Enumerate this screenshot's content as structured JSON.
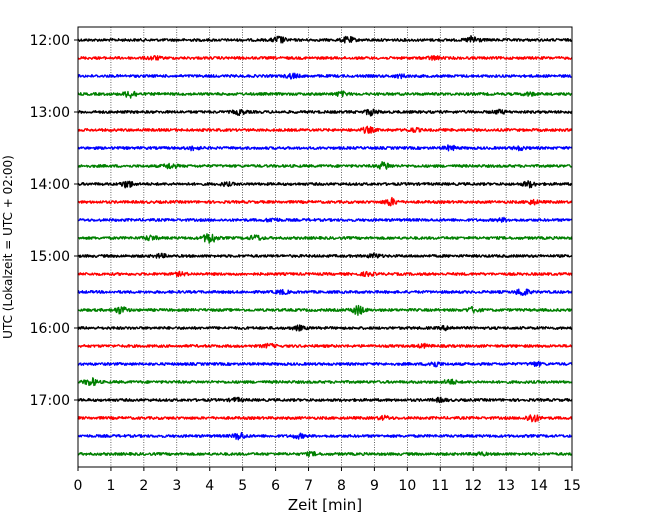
{
  "chart_data": {
    "type": "line",
    "title": "",
    "xlabel": "Zeit  [min]",
    "ylabel": "UTC (Lokalzeit = UTC + 02:00)",
    "xlim": [
      0,
      15
    ],
    "xticks": [
      0,
      1,
      2,
      3,
      4,
      5,
      6,
      7,
      8,
      9,
      10,
      11,
      12,
      13,
      14,
      15
    ],
    "yticks": [
      "12:00",
      "13:00",
      "14:00",
      "15:00",
      "16:00",
      "17:00"
    ],
    "grid": "vertical dotted lines at each minute",
    "trace_interval_minutes": 15,
    "color_cycle": [
      "#000000",
      "#ff0000",
      "#0000ff",
      "#008000"
    ],
    "series": [
      {
        "start": "12:00",
        "color": "#000000",
        "events": [
          [
            6.1,
            1.2
          ],
          [
            8.2,
            1.0
          ],
          [
            12.0,
            1.4
          ]
        ]
      },
      {
        "start": "12:15",
        "color": "#ff0000",
        "events": [
          [
            2.3,
            0.6
          ],
          [
            10.8,
            0.6
          ]
        ]
      },
      {
        "start": "12:30",
        "color": "#0000ff",
        "events": [
          [
            6.5,
            0.8
          ],
          [
            9.8,
            0.5
          ]
        ]
      },
      {
        "start": "12:45",
        "color": "#008000",
        "events": [
          [
            1.6,
            1.3
          ],
          [
            8.0,
            0.7
          ],
          [
            13.7,
            0.5
          ]
        ]
      },
      {
        "start": "13:00",
        "color": "#000000",
        "events": [
          [
            4.9,
            0.8
          ],
          [
            8.9,
            1.0
          ],
          [
            12.8,
            0.6
          ]
        ]
      },
      {
        "start": "13:15",
        "color": "#ff0000",
        "events": [
          [
            8.8,
            1.0
          ],
          [
            10.2,
            0.6
          ]
        ]
      },
      {
        "start": "13:30",
        "color": "#0000ff",
        "events": [
          [
            3.5,
            0.6
          ],
          [
            11.3,
            0.8
          ],
          [
            13.4,
            0.6
          ]
        ]
      },
      {
        "start": "13:45",
        "color": "#008000",
        "events": [
          [
            2.8,
            0.9
          ],
          [
            9.3,
            1.3
          ]
        ]
      },
      {
        "start": "14:00",
        "color": "#000000",
        "events": [
          [
            1.5,
            1.2
          ],
          [
            4.5,
            0.5
          ],
          [
            13.7,
            1.0
          ]
        ]
      },
      {
        "start": "14:15",
        "color": "#ff0000",
        "events": [
          [
            9.5,
            1.3
          ],
          [
            13.8,
            0.7
          ]
        ]
      },
      {
        "start": "14:30",
        "color": "#0000ff",
        "events": [
          [
            5.9,
            0.6
          ],
          [
            12.9,
            0.5
          ]
        ]
      },
      {
        "start": "14:45",
        "color": "#008000",
        "events": [
          [
            2.2,
            0.8
          ],
          [
            4.0,
            2.0
          ],
          [
            5.4,
            0.9
          ]
        ]
      },
      {
        "start": "15:00",
        "color": "#000000",
        "events": [
          [
            2.5,
            0.6
          ],
          [
            9.0,
            0.7
          ]
        ]
      },
      {
        "start": "15:15",
        "color": "#ff0000",
        "events": [
          [
            3.1,
            0.5
          ],
          [
            8.8,
            0.6
          ]
        ]
      },
      {
        "start": "15:30",
        "color": "#0000ff",
        "events": [
          [
            6.2,
            0.6
          ],
          [
            13.5,
            1.4
          ]
        ]
      },
      {
        "start": "15:45",
        "color": "#008000",
        "events": [
          [
            1.3,
            1.2
          ],
          [
            8.5,
            1.6
          ],
          [
            12.0,
            0.9
          ]
        ]
      },
      {
        "start": "16:00",
        "color": "#000000",
        "events": [
          [
            6.7,
            0.7
          ],
          [
            11.2,
            0.6
          ]
        ]
      },
      {
        "start": "16:15",
        "color": "#ff0000",
        "events": [
          [
            5.8,
            0.6
          ],
          [
            10.5,
            0.5
          ]
        ]
      },
      {
        "start": "16:30",
        "color": "#0000ff",
        "events": [
          [
            10.8,
            1.0
          ],
          [
            13.9,
            0.6
          ]
        ]
      },
      {
        "start": "16:45",
        "color": "#008000",
        "events": [
          [
            0.4,
            1.3
          ],
          [
            11.3,
            0.8
          ]
        ]
      },
      {
        "start": "17:00",
        "color": "#000000",
        "events": [
          [
            4.8,
            0.6
          ],
          [
            11.0,
            0.6
          ]
        ]
      },
      {
        "start": "17:15",
        "color": "#ff0000",
        "events": [
          [
            13.8,
            1.5
          ],
          [
            9.3,
            0.6
          ]
        ]
      },
      {
        "start": "17:30",
        "color": "#0000ff",
        "events": [
          [
            4.9,
            1.2
          ],
          [
            6.7,
            0.7
          ]
        ]
      },
      {
        "start": "17:45",
        "color": "#008000",
        "events": [
          [
            7.1,
            0.5
          ],
          [
            12.2,
            0.5
          ]
        ]
      }
    ]
  }
}
